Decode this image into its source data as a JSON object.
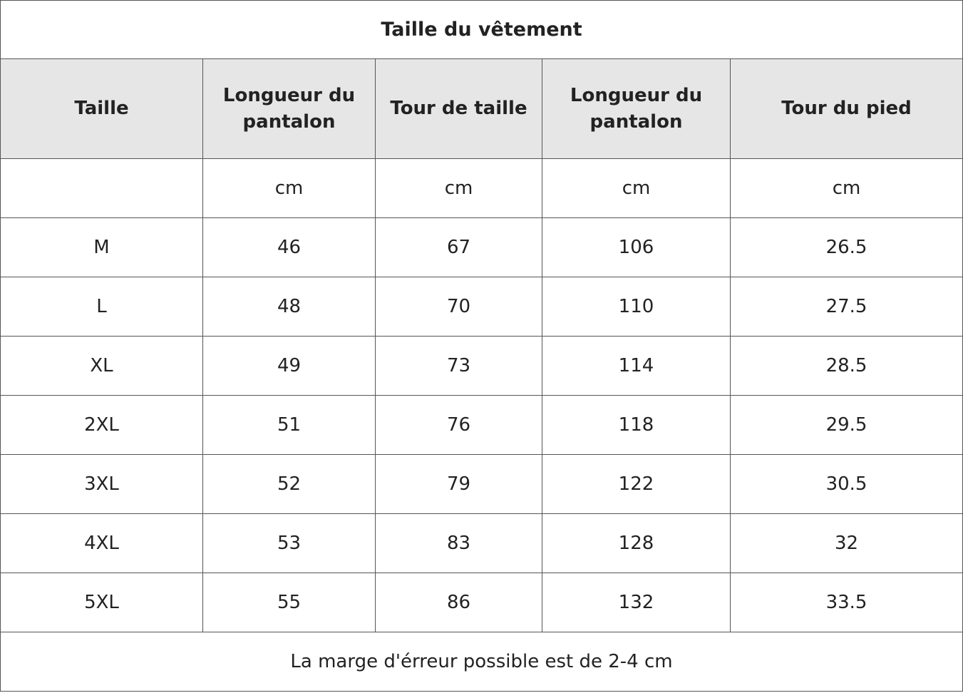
{
  "title": "Taille du vêtement",
  "columns": [
    "Taille",
    "Longueur du pantalon",
    "Tour de taille",
    "Longueur du pantalon",
    "Tour du pied"
  ],
  "units": [
    "",
    "cm",
    "cm",
    "cm",
    "cm"
  ],
  "rows": [
    [
      "M",
      "46",
      "67",
      "106",
      "26.5"
    ],
    [
      "L",
      "48",
      "70",
      "110",
      "27.5"
    ],
    [
      "XL",
      "49",
      "73",
      "114",
      "28.5"
    ],
    [
      "2XL",
      "51",
      "76",
      "118",
      "29.5"
    ],
    [
      "3XL",
      "52",
      "79",
      "122",
      "30.5"
    ],
    [
      "4XL",
      "53",
      "83",
      "128",
      "32"
    ],
    [
      "5XL",
      "55",
      "86",
      "132",
      "33.5"
    ]
  ],
  "footer": "La marge d'érreur possible est de 2-4 cm"
}
